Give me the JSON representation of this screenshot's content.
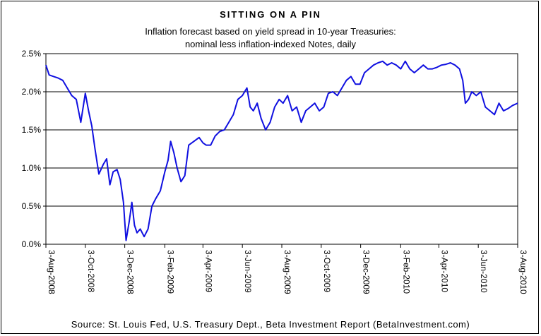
{
  "chart_data": {
    "type": "line",
    "title": "SITTING ON A PIN",
    "subtitle_line1": "Inflation forecast based on yield spread in 10-year Treasuries:",
    "subtitle_line2": "nominal less inflation-indexed Notes, daily",
    "source": "Source: St. Louis Fed, U.S. Treasury Dept., Beta Investment Report (BetaInvestment.com)",
    "ylim": [
      0,
      2.5
    ],
    "y_ticks": [
      {
        "value": 0.0,
        "label": "0.0%"
      },
      {
        "value": 0.5,
        "label": "0.5%"
      },
      {
        "value": 1.0,
        "label": "1.0%"
      },
      {
        "value": 1.5,
        "label": "1.5%"
      },
      {
        "value": 2.0,
        "label": "2.0%"
      },
      {
        "value": 2.5,
        "label": "2.5%"
      }
    ],
    "x_ticks": [
      "3-Aug-2008",
      "3-Oct-2008",
      "3-Dec-2008",
      "3-Feb-2009",
      "3-Apr-2009",
      "3-Jun-2009",
      "3-Aug-2009",
      "3-Oct-2009",
      "3-Dec-2009",
      "3-Feb-2010",
      "3-Apr-2010",
      "3-Jun-2010",
      "3-Aug-2010"
    ],
    "grid": "horizontal",
    "line_color": "#1010e0",
    "series": [
      {
        "x": [
          "2008-08-03",
          "2008-08-08",
          "2008-08-15",
          "2008-08-22",
          "2008-08-29",
          "2008-09-05",
          "2008-09-12",
          "2008-09-19",
          "2008-09-26",
          "2008-10-03",
          "2008-10-08",
          "2008-10-13",
          "2008-10-18",
          "2008-10-24",
          "2008-10-31",
          "2008-11-05",
          "2008-11-10",
          "2008-11-15",
          "2008-11-21",
          "2008-11-26",
          "2008-12-01",
          "2008-12-03",
          "2008-12-05",
          "2008-12-10",
          "2008-12-14",
          "2008-12-18",
          "2008-12-22",
          "2008-12-27",
          "2009-01-02",
          "2009-01-08",
          "2009-01-14",
          "2009-01-20",
          "2009-01-27",
          "2009-02-03",
          "2009-02-08",
          "2009-02-12",
          "2009-02-17",
          "2009-02-22",
          "2009-02-28",
          "2009-03-06",
          "2009-03-12",
          "2009-03-20",
          "2009-03-28",
          "2009-04-03",
          "2009-04-08",
          "2009-04-15",
          "2009-04-22",
          "2009-04-29",
          "2009-05-06",
          "2009-05-13",
          "2009-05-20",
          "2009-05-27",
          "2009-06-03",
          "2009-06-10",
          "2009-06-15",
          "2009-06-20",
          "2009-06-26",
          "2009-07-02",
          "2009-07-09",
          "2009-07-16",
          "2009-07-23",
          "2009-07-30",
          "2009-08-05",
          "2009-08-12",
          "2009-08-19",
          "2009-08-26",
          "2009-09-02",
          "2009-09-09",
          "2009-09-16",
          "2009-09-23",
          "2009-09-30",
          "2009-10-07",
          "2009-10-14",
          "2009-10-21",
          "2009-10-28",
          "2009-11-04",
          "2009-11-11",
          "2009-11-18",
          "2009-11-25",
          "2009-12-02",
          "2009-12-09",
          "2009-12-16",
          "2009-12-23",
          "2009-12-30",
          "2010-01-06",
          "2010-01-13",
          "2010-01-20",
          "2010-01-27",
          "2010-02-03",
          "2010-02-10",
          "2010-02-17",
          "2010-02-24",
          "2010-03-03",
          "2010-03-10",
          "2010-03-17",
          "2010-03-24",
          "2010-03-31",
          "2010-04-07",
          "2010-04-14",
          "2010-04-21",
          "2010-04-28",
          "2010-05-05",
          "2010-05-10",
          "2010-05-14",
          "2010-05-19",
          "2010-05-24",
          "2010-05-31",
          "2010-06-07",
          "2010-06-14",
          "2010-06-21",
          "2010-06-28",
          "2010-07-05",
          "2010-07-12",
          "2010-07-19",
          "2010-07-26",
          "2010-08-03"
        ],
        "y": [
          2.35,
          2.22,
          2.2,
          2.18,
          2.15,
          2.05,
          1.95,
          1.9,
          1.6,
          1.98,
          1.75,
          1.55,
          1.25,
          0.92,
          1.05,
          1.12,
          0.78,
          0.95,
          0.98,
          0.85,
          0.55,
          0.3,
          0.05,
          0.3,
          0.55,
          0.25,
          0.15,
          0.2,
          0.1,
          0.2,
          0.5,
          0.6,
          0.7,
          0.95,
          1.1,
          1.35,
          1.2,
          1.0,
          0.82,
          0.9,
          1.3,
          1.35,
          1.4,
          1.33,
          1.3,
          1.3,
          1.42,
          1.48,
          1.5,
          1.6,
          1.7,
          1.9,
          1.95,
          2.05,
          1.8,
          1.75,
          1.85,
          1.65,
          1.5,
          1.6,
          1.8,
          1.9,
          1.85,
          1.95,
          1.75,
          1.8,
          1.6,
          1.75,
          1.8,
          1.85,
          1.75,
          1.8,
          1.98,
          2.0,
          1.95,
          2.05,
          2.15,
          2.2,
          2.1,
          2.1,
          2.25,
          2.3,
          2.35,
          2.38,
          2.4,
          2.35,
          2.38,
          2.35,
          2.3,
          2.4,
          2.3,
          2.25,
          2.3,
          2.35,
          2.3,
          2.3,
          2.32,
          2.35,
          2.36,
          2.38,
          2.35,
          2.3,
          2.15,
          1.85,
          1.9,
          2.0,
          1.95,
          2.0,
          1.8,
          1.75,
          1.7,
          1.85,
          1.75,
          1.78,
          1.82,
          1.85
        ]
      }
    ]
  }
}
